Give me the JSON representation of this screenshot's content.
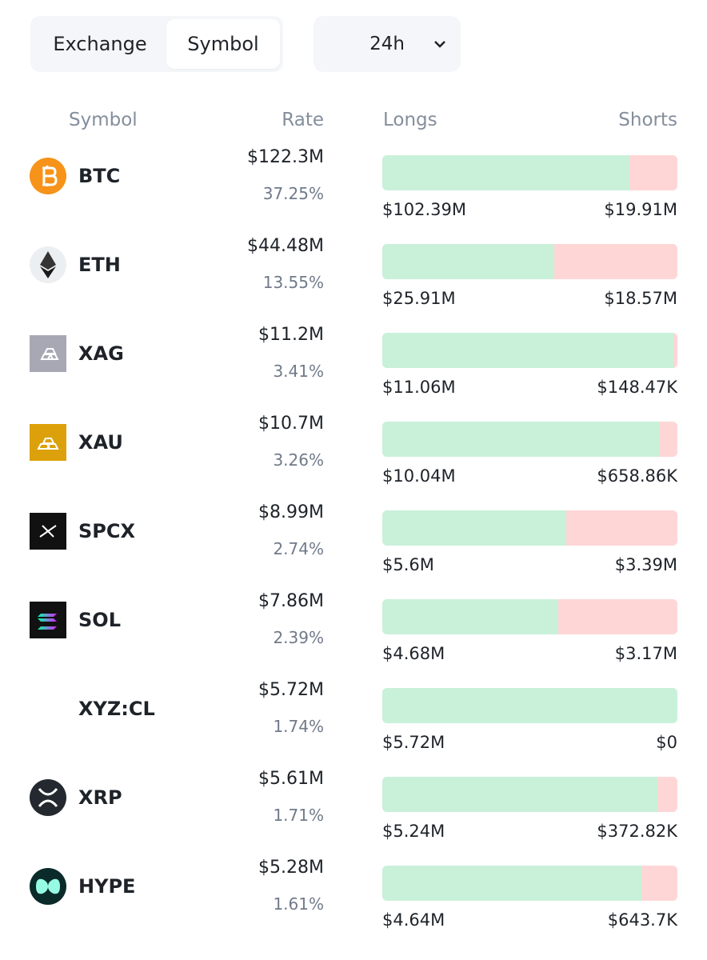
{
  "tabs": {
    "items": [
      "Exchange",
      "Symbol"
    ],
    "selected": 1
  },
  "timeframe": "24h",
  "table": {
    "headers": [
      "Symbol",
      "Rate",
      "Longs",
      "Shorts"
    ],
    "rows": [
      {
        "symbol": "BTC",
        "amount": "$122.3M",
        "share": "37.25%",
        "longs": "$102.39M",
        "shorts": "$19.91M"
      },
      {
        "symbol": "ETH",
        "amount": "$44.48M",
        "share": "13.55%",
        "longs": "$25.91M",
        "shorts": "$18.57M"
      },
      {
        "symbol": "XAG",
        "amount": "$11.2M",
        "share": "3.41%",
        "longs": "$11.06M",
        "shorts": "$148.47K"
      },
      {
        "symbol": "XAU",
        "amount": "$10.7M",
        "share": "3.26%",
        "longs": "$10.04M",
        "shorts": "$658.86K"
      },
      {
        "symbol": "SPCX",
        "amount": "$8.99M",
        "share": "2.74%",
        "longs": "$5.6M",
        "shorts": "$3.39M"
      },
      {
        "symbol": "SOL",
        "amount": "$7.86M",
        "share": "2.39%",
        "longs": "$4.68M",
        "shorts": "$3.17M"
      },
      {
        "symbol": "XYZ:CL",
        "amount": "$5.72M",
        "share": "1.74%",
        "longs": "$5.72M",
        "shorts": "$0"
      },
      {
        "symbol": "XRP",
        "amount": "$5.61M",
        "share": "1.71%",
        "longs": "$5.24M",
        "shorts": "$372.82K"
      },
      {
        "symbol": "HYPE",
        "amount": "$5.28M",
        "share": "1.61%",
        "longs": "$4.64M",
        "shorts": "$643.7K"
      }
    ]
  }
}
